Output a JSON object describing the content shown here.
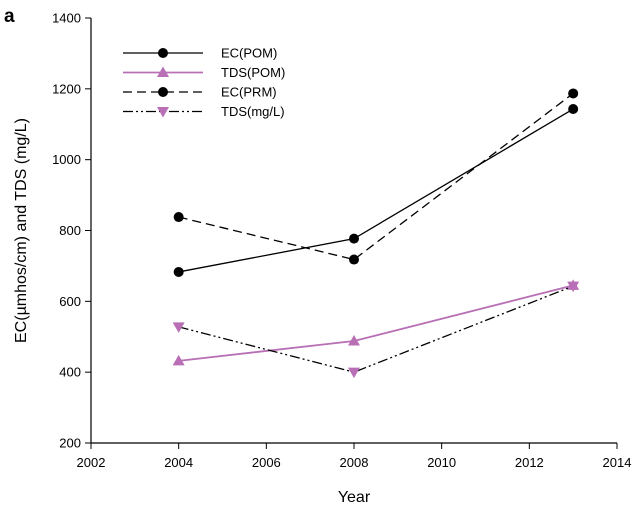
{
  "panel_label": "a",
  "chart_data": {
    "type": "line",
    "xlabel": "Year",
    "ylabel": "EC(µmhos/cm) and TDS (mg/L)",
    "xlim": [
      2002,
      2014
    ],
    "ylim": [
      200,
      1400
    ],
    "xticks": [
      2002,
      2004,
      2006,
      2008,
      2010,
      2012,
      2014
    ],
    "yticks": [
      200,
      400,
      600,
      800,
      1000,
      1200,
      1400
    ],
    "grid": false,
    "legend_position": "top-left",
    "series": [
      {
        "name": "EC(POM)",
        "x": [
          2004,
          2008,
          2013
        ],
        "y": [
          683,
          777,
          1143
        ],
        "color": "#000000",
        "dash": "solid",
        "marker": "circle"
      },
      {
        "name": "TDS(POM)",
        "x": [
          2004,
          2008,
          2013
        ],
        "y": [
          432,
          488,
          645
        ],
        "color": "#b86fb6",
        "dash": "solid",
        "marker": "triangle-up"
      },
      {
        "name": "EC(PRM)",
        "x": [
          2004,
          2008,
          2013
        ],
        "y": [
          838,
          718,
          1187
        ],
        "color": "#000000",
        "dash": "dashed",
        "marker": "circle"
      },
      {
        "name": "TDS(mg/L)",
        "x": [
          2004,
          2008,
          2013
        ],
        "y": [
          528,
          400,
          643
        ],
        "color": "#000000",
        "dash": "dash-dot-dot",
        "marker": "triangle-down",
        "marker_color": "#b86fb6"
      }
    ]
  }
}
